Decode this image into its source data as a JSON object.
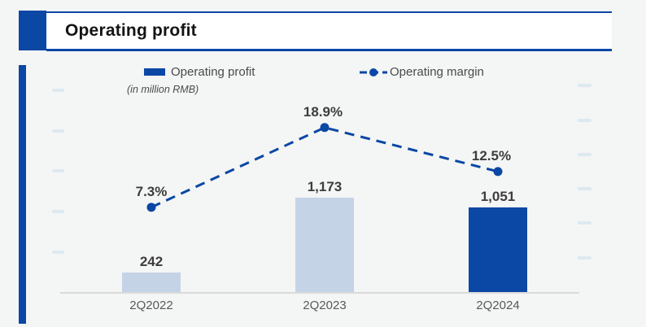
{
  "header": {
    "title": "Operating profit"
  },
  "legend": {
    "bar_label": "Operating profit",
    "unit_note": "(in million RMB)",
    "line_label": "Operating margin"
  },
  "chart_data": {
    "type": "bar",
    "categories": [
      "2Q2022",
      "2Q2023",
      "2Q2024"
    ],
    "series": [
      {
        "name": "Operating profit",
        "type": "bar",
        "unit": "million RMB",
        "values": [
          242,
          1173,
          1051
        ],
        "labels": [
          "242",
          "1,173",
          "1,051"
        ]
      },
      {
        "name": "Operating margin",
        "type": "line",
        "style": "dashed-with-dots",
        "unit": "%",
        "values": [
          7.3,
          18.9,
          12.5
        ],
        "labels": [
          "7.3%",
          "18.9%",
          "12.5%"
        ]
      }
    ],
    "bar_colors": [
      "#C5D3E7",
      "#C5D3E7",
      "#0B47A4"
    ],
    "value_axis": {
      "side": "left",
      "min": 0,
      "max": 2500,
      "step": 500,
      "visibility": "faint-ticks-only"
    },
    "percent_axis": {
      "side": "right",
      "min": 0,
      "max": 25,
      "step": 5,
      "visibility": "faint-ticks-only"
    },
    "grid": false,
    "legend_position": "top",
    "title": "Operating profit",
    "xlabel": "",
    "ylabel": "in million RMB"
  },
  "colors": {
    "brand_blue": "#0B47A4",
    "light_bar": "#C5D3E7",
    "label_dark": "#3D3D3D",
    "axis_gray": "#DADADA",
    "faint_tick": "#DDE9F0",
    "xlabel_gray": "#595959",
    "background": "#F4F5F5",
    "band_white": "#FFFFFF"
  }
}
